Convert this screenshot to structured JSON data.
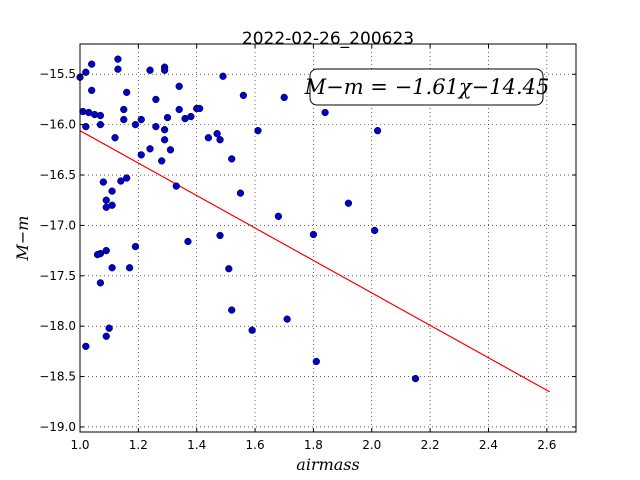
{
  "chart_data": {
    "type": "scatter",
    "title": "2022-02-26_200623",
    "xlabel": "airmass",
    "ylabel": "M−m",
    "xlim": [
      1.0,
      2.7
    ],
    "ylim": [
      -19.05,
      -15.2
    ],
    "xticks": [
      "1.0",
      "1.2",
      "1.4",
      "1.6",
      "1.8",
      "2.0",
      "2.2",
      "2.4",
      "2.6"
    ],
    "yticks": [
      "−15.5",
      "−16.0",
      "−16.5",
      "−17.0",
      "−17.5",
      "−18.0",
      "−18.5",
      "−19.0"
    ],
    "grid": true,
    "annotation": "M−m = −1.61χ−14.45",
    "fit_line": {
      "slope": -1.61,
      "intercept": -14.45,
      "x_range": [
        1.0,
        2.61
      ],
      "color": "#ff0000"
    },
    "point_color": "#0000cc",
    "points": [
      [
        1.0,
        -15.53
      ],
      [
        1.02,
        -15.48
      ],
      [
        1.04,
        -15.4
      ],
      [
        1.04,
        -15.66
      ],
      [
        1.03,
        -15.88
      ],
      [
        1.01,
        -15.87
      ],
      [
        1.02,
        -16.02
      ],
      [
        1.05,
        -15.9
      ],
      [
        1.07,
        -15.91
      ],
      [
        1.07,
        -16.0
      ],
      [
        1.08,
        -16.57
      ],
      [
        1.09,
        -16.75
      ],
      [
        1.09,
        -16.82
      ],
      [
        1.11,
        -16.66
      ],
      [
        1.11,
        -16.8
      ],
      [
        1.09,
        -17.25
      ],
      [
        1.07,
        -17.28
      ],
      [
        1.06,
        -17.29
      ],
      [
        1.07,
        -17.57
      ],
      [
        1.11,
        -17.42
      ],
      [
        1.17,
        -17.42
      ],
      [
        1.19,
        -17.21
      ],
      [
        1.02,
        -18.2
      ],
      [
        1.09,
        -18.1
      ],
      [
        1.1,
        -18.02
      ],
      [
        1.13,
        -15.35
      ],
      [
        1.13,
        -15.45
      ],
      [
        1.16,
        -15.68
      ],
      [
        1.15,
        -15.85
      ],
      [
        1.15,
        -15.95
      ],
      [
        1.12,
        -16.13
      ],
      [
        1.19,
        -16.0
      ],
      [
        1.21,
        -15.95
      ],
      [
        1.14,
        -16.56
      ],
      [
        1.16,
        -16.53
      ],
      [
        1.21,
        -16.3
      ],
      [
        1.24,
        -15.46
      ],
      [
        1.29,
        -15.43
      ],
      [
        1.29,
        -15.46
      ],
      [
        1.26,
        -15.75
      ],
      [
        1.26,
        -16.02
      ],
      [
        1.29,
        -16.05
      ],
      [
        1.29,
        -16.15
      ],
      [
        1.24,
        -16.24
      ],
      [
        1.31,
        -16.25
      ],
      [
        1.28,
        -16.36
      ],
      [
        1.3,
        -15.93
      ],
      [
        1.34,
        -15.62
      ],
      [
        1.34,
        -15.85
      ],
      [
        1.36,
        -15.94
      ],
      [
        1.38,
        -15.92
      ],
      [
        1.4,
        -15.84
      ],
      [
        1.41,
        -15.84
      ],
      [
        1.33,
        -16.61
      ],
      [
        1.37,
        -17.16
      ],
      [
        1.44,
        -16.13
      ],
      [
        1.47,
        -16.09
      ],
      [
        1.49,
        -15.52
      ],
      [
        1.48,
        -16.15
      ],
      [
        1.48,
        -17.1
      ],
      [
        1.52,
        -16.34
      ],
      [
        1.51,
        -17.43
      ],
      [
        1.52,
        -17.84
      ],
      [
        1.56,
        -15.71
      ],
      [
        1.55,
        -16.68
      ],
      [
        1.61,
        -16.06
      ],
      [
        1.59,
        -18.04
      ],
      [
        1.7,
        -15.73
      ],
      [
        1.68,
        -16.91
      ],
      [
        1.71,
        -17.93
      ],
      [
        1.8,
        -17.09
      ],
      [
        1.81,
        -18.35
      ],
      [
        1.84,
        -15.88
      ],
      [
        1.92,
        -16.78
      ],
      [
        2.01,
        -17.05
      ],
      [
        2.02,
        -16.06
      ],
      [
        2.15,
        -18.52
      ]
    ]
  }
}
